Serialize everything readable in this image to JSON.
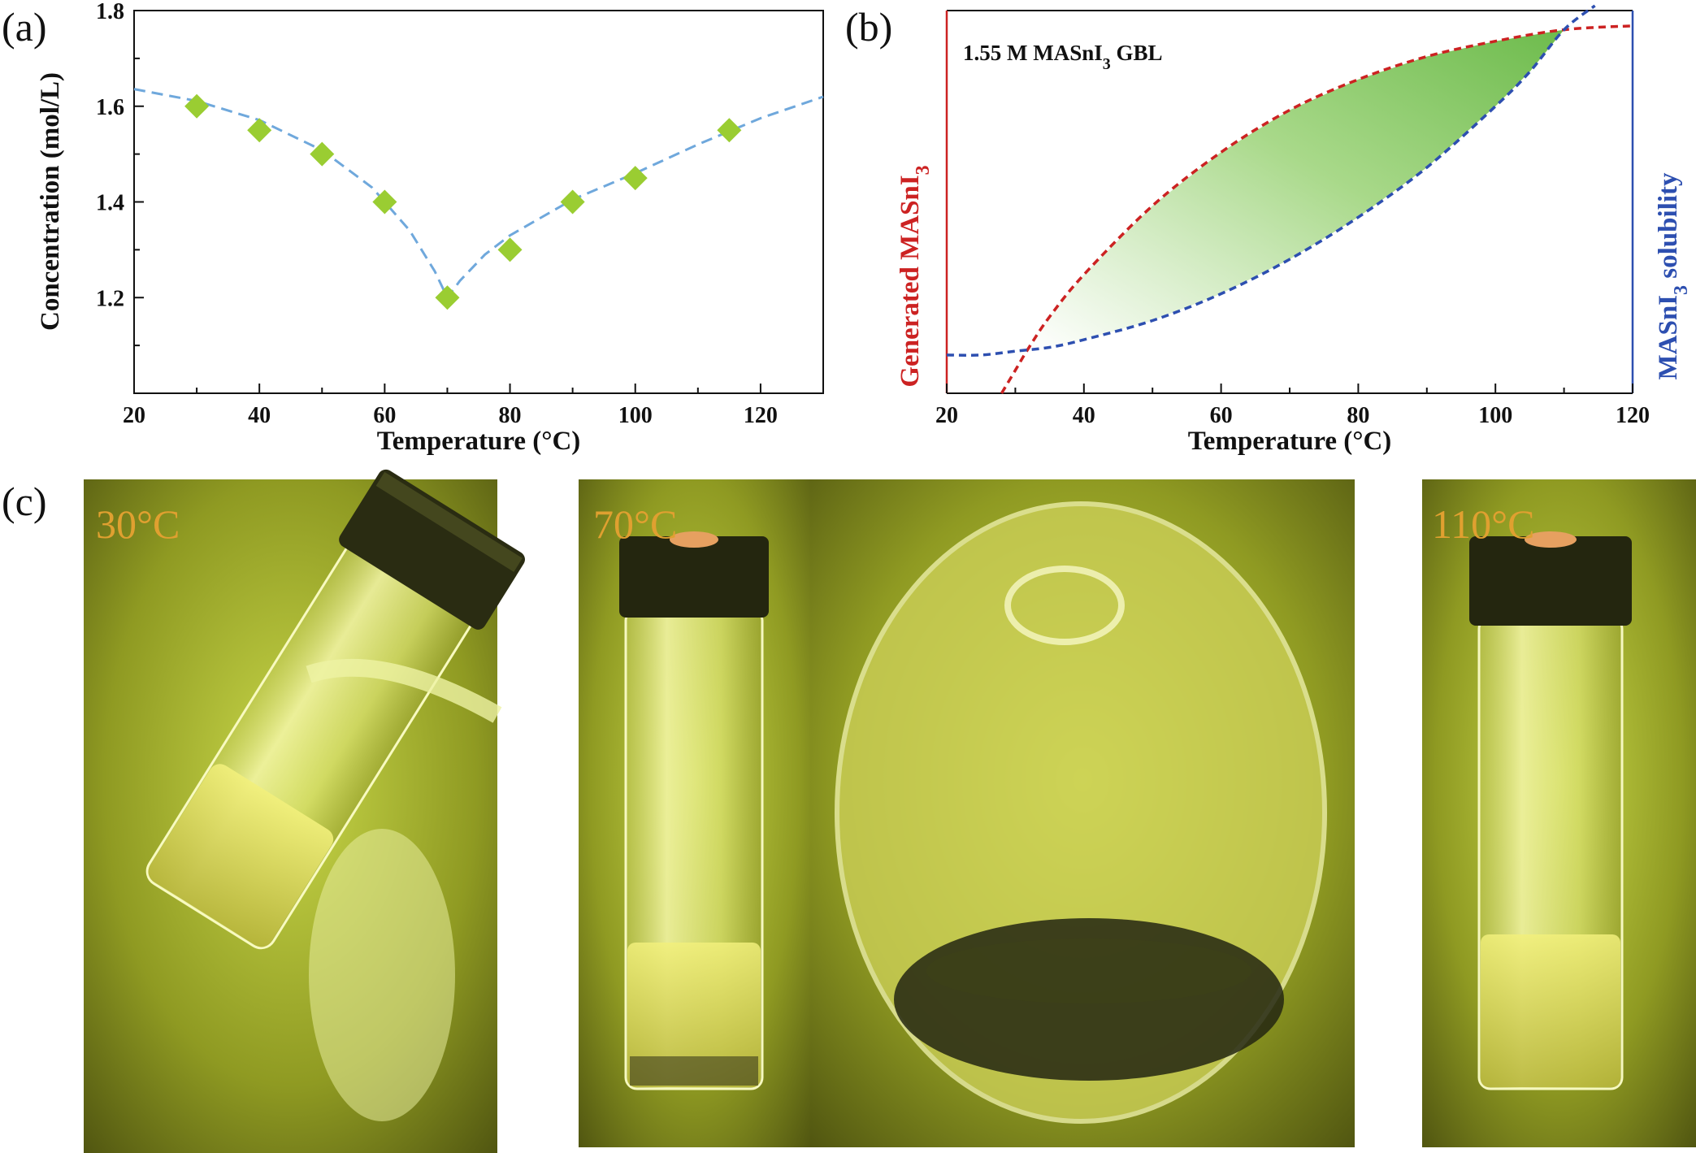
{
  "panel_labels": {
    "a": "(a)",
    "b": "(b)",
    "c": "(c)"
  },
  "chart_data": [
    {
      "type": "scatter",
      "panel": "(a)",
      "title": "",
      "xlabel": "Temperature (°C)",
      "ylabel": "Concentration (mol/L)",
      "xlim": [
        20,
        130
      ],
      "ylim": [
        1.0,
        1.8
      ],
      "xticks": [
        20,
        40,
        60,
        80,
        100,
        120
      ],
      "yticks": [
        1.2,
        1.4,
        1.6,
        1.8
      ],
      "points": [
        {
          "x": 30,
          "y": 1.6
        },
        {
          "x": 40,
          "y": 1.55
        },
        {
          "x": 50,
          "y": 1.5
        },
        {
          "x": 60,
          "y": 1.4
        },
        {
          "x": 70,
          "y": 1.2
        },
        {
          "x": 80,
          "y": 1.3
        },
        {
          "x": 90,
          "y": 1.4
        },
        {
          "x": 100,
          "y": 1.45
        },
        {
          "x": 115,
          "y": 1.55
        }
      ],
      "fit_curve": {
        "style": "dashed",
        "color": "#6fa8dc",
        "points": [
          [
            20,
            1.636
          ],
          [
            30,
            1.611
          ],
          [
            40,
            1.571
          ],
          [
            50,
            1.508
          ],
          [
            58,
            1.43
          ],
          [
            64,
            1.34
          ],
          [
            68,
            1.255
          ],
          [
            70,
            1.2
          ],
          [
            72,
            1.235
          ],
          [
            76,
            1.29
          ],
          [
            80,
            1.33
          ],
          [
            90,
            1.405
          ],
          [
            100,
            1.46
          ],
          [
            110,
            1.52
          ],
          [
            120,
            1.575
          ],
          [
            130,
            1.62
          ]
        ]
      },
      "marker_color": "#9acd32"
    },
    {
      "type": "line",
      "panel": "(b)",
      "title": "",
      "annotation": "1.55 M MASnI3 GBL",
      "annotation_parts": {
        "pre": "1.55 M MASnI",
        "sub": "3",
        "post": " GBL"
      },
      "xlabel": "Temperature (°C)",
      "xlim": [
        20,
        120
      ],
      "xticks": [
        20,
        40,
        60,
        80,
        100,
        120
      ],
      "ylim": [
        0,
        1
      ],
      "left_axis_label": {
        "pre": "Generated  MASnI",
        "sub": "3",
        "post": ""
      },
      "right_axis_label": {
        "pre": "MASnI",
        "sub": "3",
        "post": " solubility"
      },
      "series": [
        {
          "name": "Generated MASnI3",
          "color": "#cc2222",
          "style": "dashed",
          "x": [
            28,
            30,
            32,
            35,
            40,
            50,
            60,
            70,
            80,
            90,
            100,
            110,
            120
          ],
          "y": [
            -0.02,
            0.06,
            0.12,
            0.2,
            0.31,
            0.49,
            0.63,
            0.74,
            0.82,
            0.88,
            0.92,
            0.95,
            0.96
          ]
        },
        {
          "name": "MASnI3 solubility",
          "color": "#2d4fb0",
          "style": "dashed",
          "x": [
            20,
            25,
            30,
            35,
            40,
            50,
            60,
            70,
            80,
            90,
            100,
            105,
            110,
            114.5
          ],
          "y": [
            0.1,
            0.1,
            0.11,
            0.12,
            0.14,
            0.19,
            0.26,
            0.35,
            0.46,
            0.59,
            0.75,
            0.84,
            0.95,
            1.03
          ]
        }
      ],
      "shaded_region": {
        "between": [
          "Generated MASnI3",
          "MASnI3 solubility"
        ],
        "x_range": [
          32,
          110
        ],
        "color": "#8fca6e"
      }
    }
  ],
  "photos": [
    {
      "label": "30°C"
    },
    {
      "label": "70°C"
    },
    {
      "label": ""
    },
    {
      "label": "110°C"
    }
  ]
}
